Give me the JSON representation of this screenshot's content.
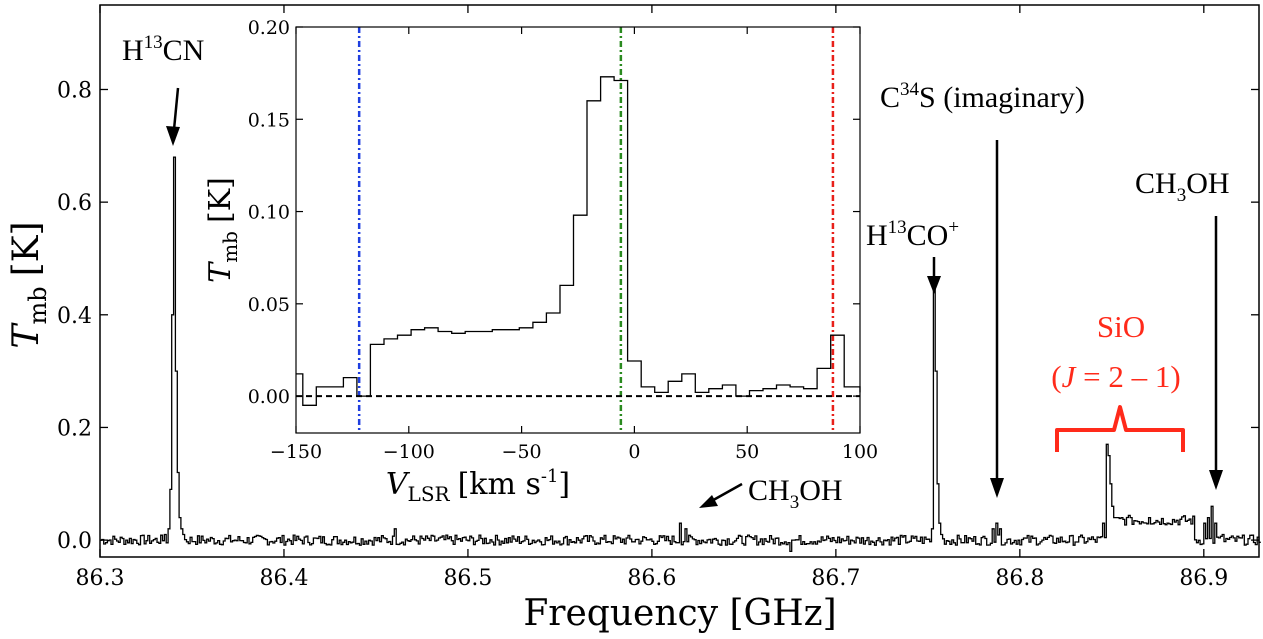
{
  "chart_data": [
    {
      "type": "line",
      "xlabel": "Frequency [GHz]",
      "ylabel_symbol": "T",
      "ylabel_sub": "mb",
      "ylabel_unit": "[K]",
      "xlim": [
        86.3,
        86.93
      ],
      "ylim": [
        -0.03,
        0.95
      ],
      "xticks": [
        "86.3",
        "86.4",
        "86.5",
        "86.6",
        "86.7",
        "86.8",
        "86.9"
      ],
      "yticks": [
        "0.0",
        "0.2",
        "0.4",
        "0.6",
        "0.8"
      ],
      "grid": false,
      "series": [
        {
          "style": "steps",
          "x": [
            86.335,
            86.337,
            86.338,
            86.339,
            86.34,
            86.341,
            86.342,
            86.343,
            86.344,
            86.345,
            86.46,
            86.615,
            86.618,
            86.675,
            86.676,
            86.752,
            86.753,
            86.754,
            86.755,
            86.756,
            86.757,
            86.785,
            86.787,
            86.789,
            86.845,
            86.847,
            86.848,
            86.849,
            86.85,
            86.851,
            86.852,
            86.853,
            86.855,
            86.86,
            86.87,
            86.88,
            86.9,
            86.902,
            86.904,
            86.906,
            86.91
          ],
          "y": [
            0.01,
            0.02,
            0.09,
            0.4,
            0.68,
            0.3,
            0.12,
            0.04,
            0.02,
            0.01,
            0.02,
            0.03,
            0.02,
            -0.02,
            0.0,
            0.02,
            0.45,
            0.3,
            0.1,
            0.03,
            0.01,
            0.02,
            0.03,
            0.02,
            0.03,
            0.17,
            0.15,
            0.1,
            0.06,
            0.04,
            0.04,
            0.04,
            0.04,
            0.04,
            0.04,
            0.03,
            0.03,
            0.04,
            0.06,
            0.03,
            0.01
          ]
        }
      ],
      "annotations": [
        {
          "text": "H¹³CN",
          "color": "#000000"
        },
        {
          "text": "C³⁴S (imaginary)",
          "color": "#000000"
        },
        {
          "text": "CH₃OH",
          "color": "#000000"
        },
        {
          "text": "H¹³CO⁺",
          "color": "#000000"
        },
        {
          "text": "CH₃OH",
          "color": "#000000"
        },
        {
          "text": "SiO",
          "color": "#ff2a1a"
        },
        {
          "text": "(J = 2 – 1)",
          "color": "#ff2a1a"
        }
      ]
    },
    {
      "type": "line",
      "xlabel": "V_LSR [km s-1]",
      "xlabel_symbol": "V",
      "xlabel_sub": "LSR",
      "xlabel_unit": "[km s",
      "xlabel_sup": "-1",
      "xlabel_close": "]",
      "ylabel_symbol": "T",
      "ylabel_sub": "mb",
      "ylabel_unit": "[K]",
      "xlim": [
        -150,
        100
      ],
      "ylim": [
        -0.02,
        0.2
      ],
      "xticks": [
        "−150",
        "−100",
        "−50",
        "0",
        "50",
        "100"
      ],
      "yticks": [
        "0.00",
        "0.05",
        "0.10",
        "0.15",
        "0.20"
      ],
      "grid": false,
      "series": [
        {
          "style": "steps",
          "x": [
            -150,
            -147,
            -141,
            -135,
            -129,
            -123,
            -117,
            -111,
            -105,
            -99,
            -93,
            -87,
            -81,
            -75,
            -69,
            -63,
            -57,
            -51,
            -45,
            -39,
            -33,
            -27,
            -21,
            -15,
            -9,
            -3,
            3,
            9,
            15,
            21,
            27,
            33,
            39,
            45,
            51,
            57,
            63,
            69,
            75,
            81,
            87,
            93,
            100
          ],
          "y": [
            0.012,
            -0.005,
            0.005,
            0.005,
            0.01,
            0.0,
            0.028,
            0.031,
            0.033,
            0.036,
            0.037,
            0.035,
            0.034,
            0.035,
            0.035,
            0.036,
            0.036,
            0.037,
            0.04,
            0.045,
            0.06,
            0.098,
            0.16,
            0.173,
            0.171,
            0.019,
            0.005,
            0.002,
            0.008,
            0.012,
            0.002,
            0.004,
            0.006,
            0.0,
            0.003,
            0.004,
            0.006,
            0.005,
            0.004,
            0.015,
            0.033,
            0.005,
            0.002
          ]
        }
      ],
      "vlines": [
        {
          "x": -122,
          "color": "#1f3fe0"
        },
        {
          "x": -6,
          "color": "#2a8a1f"
        },
        {
          "x": 88,
          "color": "#e8201a"
        }
      ],
      "hline": {
        "y": 0,
        "color": "#000000"
      }
    }
  ]
}
